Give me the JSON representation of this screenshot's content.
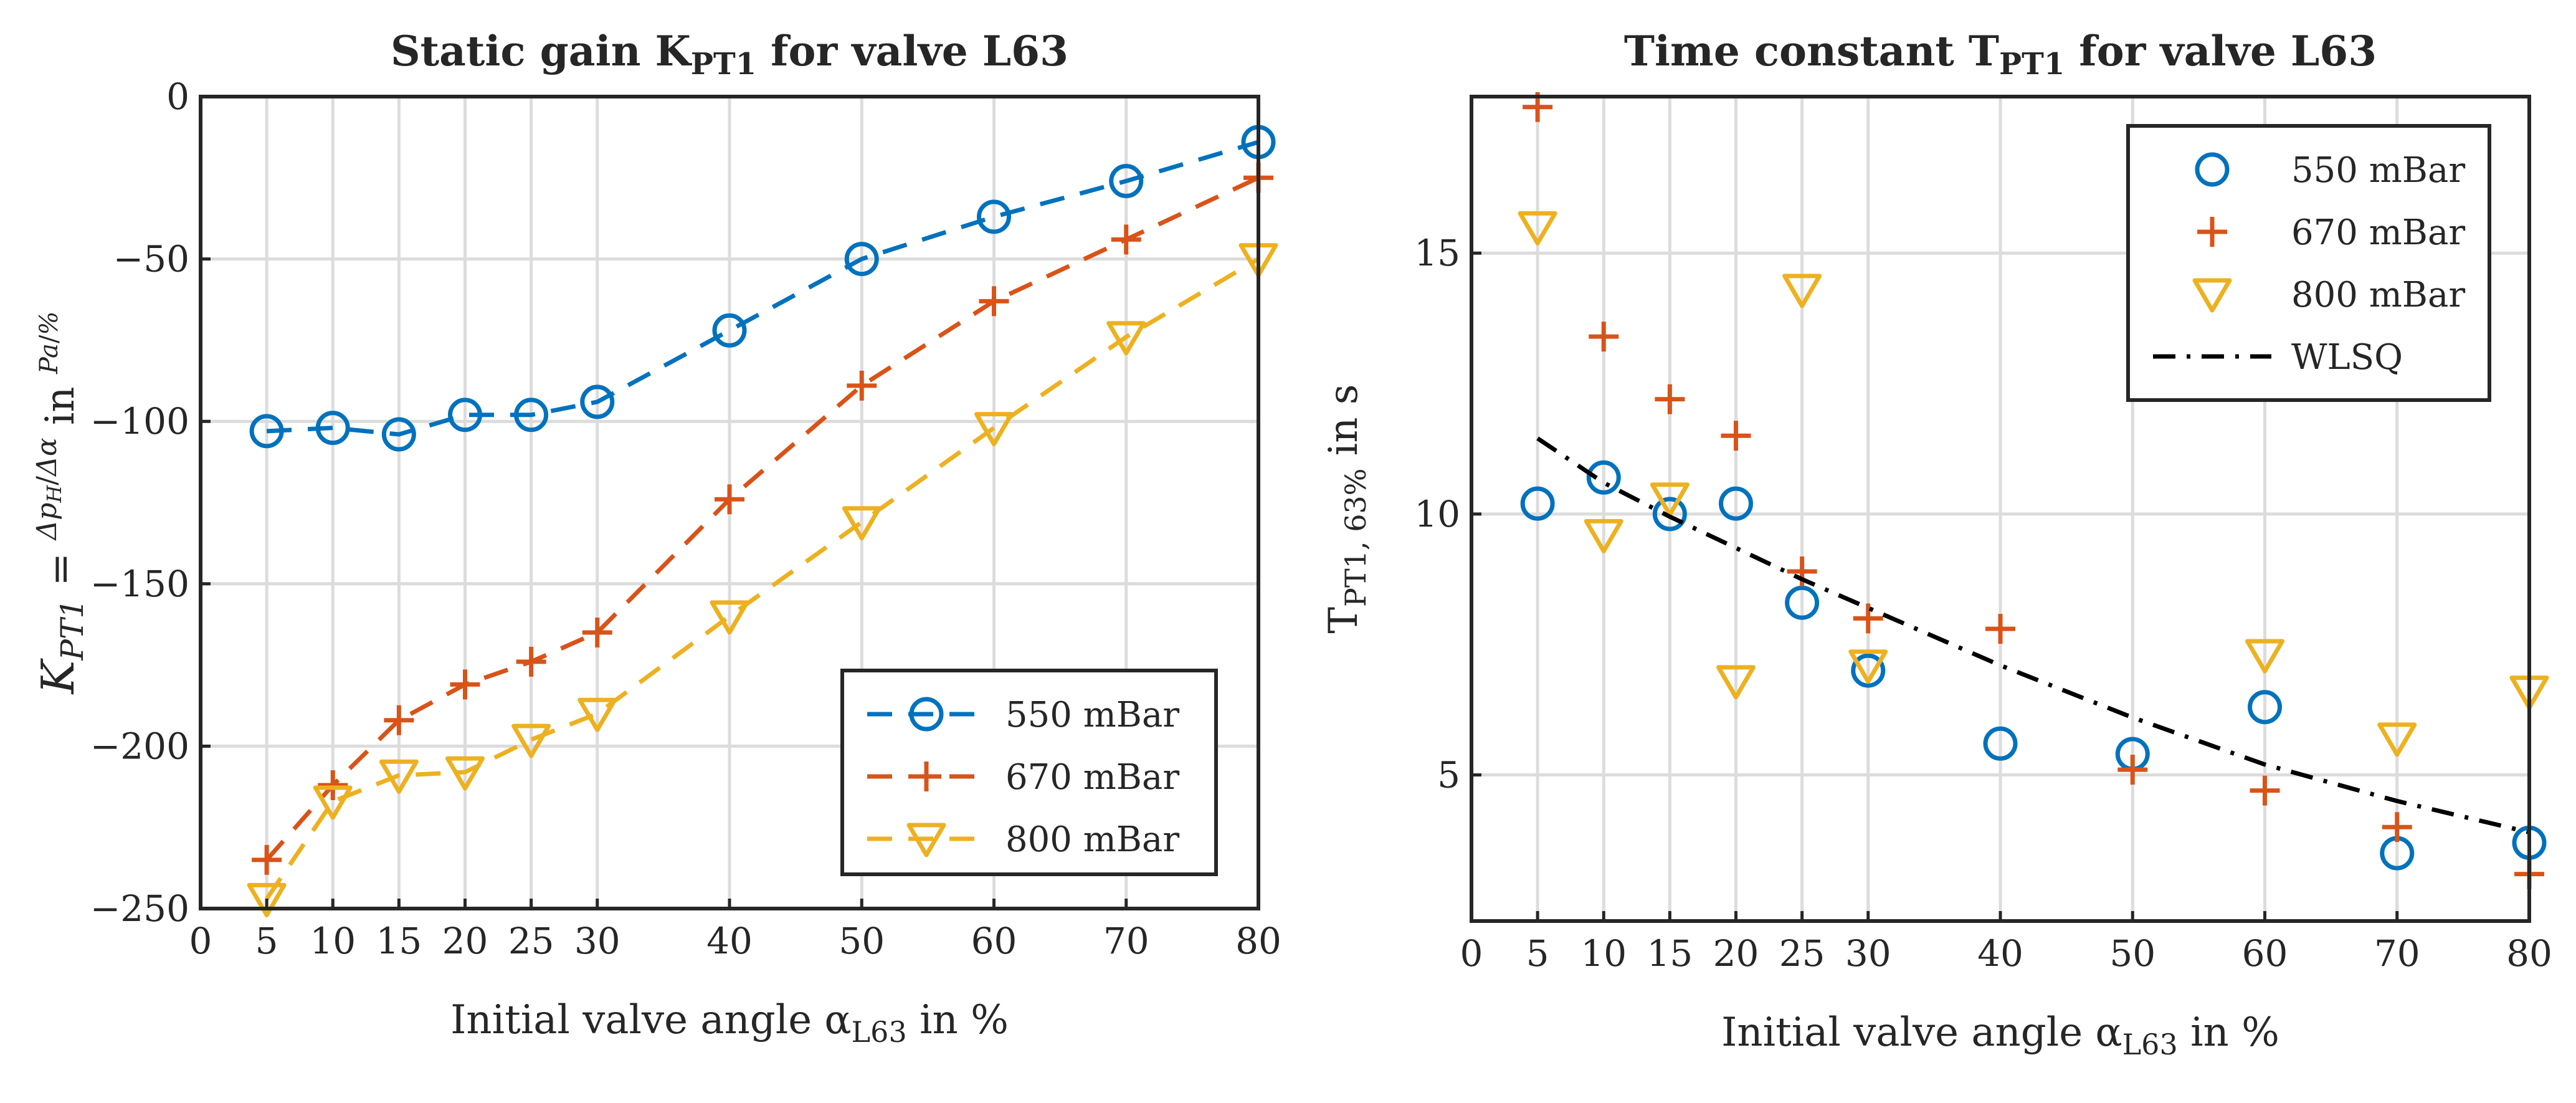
{
  "colors": {
    "s550": "#0072BD",
    "s670": "#D95319",
    "s800": "#EDB120",
    "fit": "#000000"
  },
  "chart_data": [
    {
      "type": "line",
      "title": "Static gain K",
      "title_sub": "PT1",
      "title_suffix": " for valve L63",
      "xlabel": "Initial valve angle α",
      "xlabel_sub": "L63",
      "xlabel_suffix": " in %",
      "ylabel": "K",
      "ylabel_sub": "PT1",
      "ylabel_eq": " = ",
      "ylabel_frac_num": "Δp",
      "ylabel_frac_num_sub": "H",
      "ylabel_frac_den": "Δα",
      "ylabel_in": " in ",
      "ylabel_unit_num": "Pa",
      "ylabel_unit_den": "%",
      "xlim": [
        0,
        80
      ],
      "ylim": [
        -250,
        0
      ],
      "xticks": [
        0,
        5,
        10,
        15,
        20,
        25,
        30,
        40,
        50,
        60,
        70,
        80
      ],
      "xtick_labels": [
        "0",
        "5",
        "10",
        "15",
        "20",
        "25",
        "30",
        "40",
        "50",
        "60",
        "70",
        "80"
      ],
      "yticks": [
        0,
        -50,
        -100,
        -150,
        -200,
        -250
      ],
      "ytick_labels": [
        "0",
        "−50",
        "−100",
        "−150",
        "−200",
        "−250"
      ],
      "legend_position": "bottom-right",
      "x": [
        5,
        10,
        15,
        20,
        25,
        30,
        40,
        50,
        60,
        70,
        80
      ],
      "series": [
        {
          "name": "550 mBar",
          "marker": "circle",
          "line": "dashed",
          "values": [
            -103,
            -102,
            -104,
            -98,
            -98,
            -94,
            -72,
            -50,
            -37,
            -26,
            -14
          ]
        },
        {
          "name": "670 mBar",
          "marker": "plus",
          "line": "dashed",
          "values": [
            -235,
            -212,
            -192,
            -181,
            -174,
            -165,
            -124,
            -89,
            -63,
            -44,
            -25
          ]
        },
        {
          "name": "800 mBar",
          "marker": "triangle-down",
          "line": "dashed",
          "values": [
            -247,
            -217,
            -209,
            -208,
            -198,
            -190,
            -160,
            -131,
            -102,
            -74,
            -50
          ]
        }
      ]
    },
    {
      "type": "scatter",
      "title": "Time constant T",
      "title_sub": "PT1",
      "title_suffix": " for valve L63",
      "xlabel": "Initial valve angle α",
      "xlabel_sub": "L63",
      "xlabel_suffix": " in %",
      "ylabel": "T",
      "ylabel_sub": "PT1, 63%",
      "ylabel_suffix": " in s",
      "xlim": [
        0,
        80
      ],
      "ylim": [
        2.2,
        18
      ],
      "xticks": [
        0,
        5,
        10,
        15,
        20,
        25,
        30,
        40,
        50,
        60,
        70,
        80
      ],
      "xtick_labels": [
        "0",
        "5",
        "10",
        "15",
        "20",
        "25",
        "30",
        "40",
        "50",
        "60",
        "70",
        "80"
      ],
      "yticks": [
        5,
        10,
        15
      ],
      "ytick_labels": [
        "5",
        "10",
        "15"
      ],
      "legend_position": "top-right",
      "x": [
        5,
        10,
        15,
        20,
        25,
        30,
        40,
        50,
        60,
        70,
        80
      ],
      "series": [
        {
          "name": "550 mBar",
          "marker": "circle",
          "line": "none",
          "values": [
            10.2,
            10.7,
            10.0,
            10.2,
            8.3,
            7.0,
            5.6,
            5.4,
            6.3,
            3.5,
            3.7
          ]
        },
        {
          "name": "670 mBar",
          "marker": "plus",
          "line": "none",
          "values": [
            17.8,
            13.4,
            12.2,
            11.5,
            8.9,
            8.0,
            7.8,
            5.1,
            4.7,
            4.0,
            3.1
          ]
        },
        {
          "name": "800 mBar",
          "marker": "triangle-down",
          "line": "none",
          "values": [
            15.5,
            9.6,
            10.3,
            6.8,
            14.3,
            7.1,
            null,
            null,
            7.3,
            5.7,
            6.6
          ]
        },
        {
          "name": "WLSQ",
          "marker": "none",
          "line": "dashdot",
          "x": [
            5,
            10,
            15,
            20,
            25,
            30,
            40,
            50,
            60,
            70,
            80
          ],
          "values": [
            11.45,
            10.6,
            9.95,
            9.35,
            8.75,
            8.2,
            7.1,
            6.1,
            5.2,
            4.5,
            3.9
          ]
        }
      ]
    }
  ]
}
